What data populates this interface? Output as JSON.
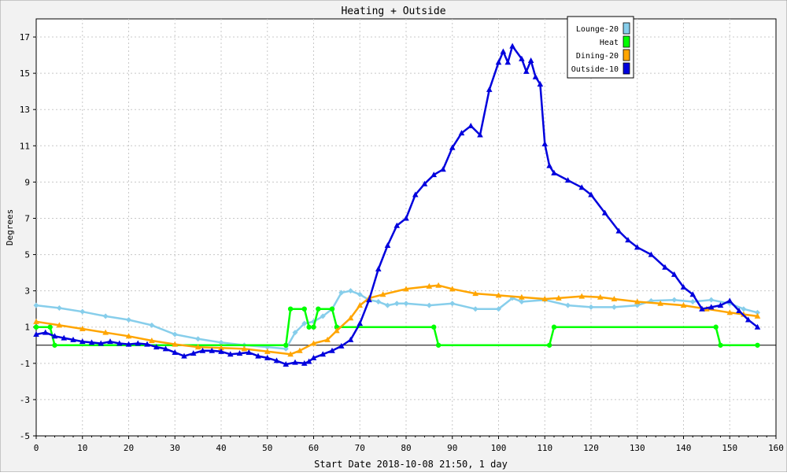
{
  "chart_data": {
    "type": "line",
    "title": "Heating + Outside",
    "xlabel": "Start Date 2018-10-08 21:50, 1 day",
    "ylabel": "Degrees",
    "xlim": [
      0,
      160
    ],
    "ylim": [
      -5,
      18
    ],
    "x_ticks": [
      0,
      10,
      20,
      30,
      40,
      50,
      60,
      70,
      80,
      90,
      100,
      110,
      120,
      130,
      140,
      150,
      160
    ],
    "y_ticks": [
      -5,
      -3,
      -1,
      1,
      3,
      5,
      7,
      9,
      11,
      13,
      15,
      17
    ],
    "grid": true,
    "legend_position": "top-right",
    "series": [
      {
        "name": "Lounge-20",
        "color": "#87ceeb",
        "marker": "diamond",
        "points": [
          [
            0,
            2.2
          ],
          [
            5,
            2.05
          ],
          [
            10,
            1.85
          ],
          [
            15,
            1.6
          ],
          [
            20,
            1.4
          ],
          [
            25,
            1.1
          ],
          [
            30,
            0.6
          ],
          [
            35,
            0.35
          ],
          [
            40,
            0.15
          ],
          [
            45,
            0.0
          ],
          [
            50,
            -0.1
          ],
          [
            54,
            -0.2
          ],
          [
            56,
            0.7
          ],
          [
            58,
            1.2
          ],
          [
            60,
            1.3
          ],
          [
            62,
            1.6
          ],
          [
            64,
            2.0
          ],
          [
            66,
            2.9
          ],
          [
            68,
            3.0
          ],
          [
            70,
            2.8
          ],
          [
            72,
            2.5
          ],
          [
            74,
            2.4
          ],
          [
            76,
            2.2
          ],
          [
            78,
            2.3
          ],
          [
            80,
            2.3
          ],
          [
            85,
            2.2
          ],
          [
            90,
            2.3
          ],
          [
            95,
            2.0
          ],
          [
            100,
            2.0
          ],
          [
            103,
            2.6
          ],
          [
            105,
            2.4
          ],
          [
            110,
            2.5
          ],
          [
            115,
            2.2
          ],
          [
            120,
            2.1
          ],
          [
            125,
            2.1
          ],
          [
            130,
            2.2
          ],
          [
            133,
            2.45
          ],
          [
            138,
            2.5
          ],
          [
            142,
            2.4
          ],
          [
            146,
            2.5
          ],
          [
            150,
            2.3
          ],
          [
            153,
            2.0
          ],
          [
            156,
            1.8
          ]
        ]
      },
      {
        "name": "Heat",
        "color": "#00ff00",
        "marker": "circle",
        "points": [
          [
            0,
            1
          ],
          [
            3,
            1
          ],
          [
            4,
            0
          ],
          [
            54,
            0
          ],
          [
            55,
            2
          ],
          [
            58,
            2
          ],
          [
            59,
            1
          ],
          [
            60,
            1
          ],
          [
            61,
            2
          ],
          [
            64,
            2
          ],
          [
            65,
            1
          ],
          [
            86,
            1
          ],
          [
            87,
            0
          ],
          [
            111,
            0
          ],
          [
            112,
            1
          ],
          [
            147,
            1
          ],
          [
            148,
            0
          ],
          [
            156,
            0
          ]
        ]
      },
      {
        "name": "Dining-20",
        "color": "#ffa500",
        "marker": "triangle",
        "points": [
          [
            0,
            1.3
          ],
          [
            5,
            1.1
          ],
          [
            10,
            0.9
          ],
          [
            15,
            0.7
          ],
          [
            20,
            0.5
          ],
          [
            25,
            0.25
          ],
          [
            30,
            0.05
          ],
          [
            35,
            -0.1
          ],
          [
            40,
            -0.15
          ],
          [
            45,
            -0.2
          ],
          [
            50,
            -0.35
          ],
          [
            55,
            -0.5
          ],
          [
            57,
            -0.3
          ],
          [
            60,
            0.1
          ],
          [
            63,
            0.3
          ],
          [
            65,
            0.8
          ],
          [
            68,
            1.5
          ],
          [
            70,
            2.2
          ],
          [
            72,
            2.6
          ],
          [
            75,
            2.8
          ],
          [
            80,
            3.1
          ],
          [
            85,
            3.25
          ],
          [
            87,
            3.3
          ],
          [
            90,
            3.1
          ],
          [
            95,
            2.85
          ],
          [
            100,
            2.75
          ],
          [
            105,
            2.65
          ],
          [
            110,
            2.55
          ],
          [
            113,
            2.6
          ],
          [
            118,
            2.7
          ],
          [
            122,
            2.65
          ],
          [
            125,
            2.55
          ],
          [
            130,
            2.4
          ],
          [
            135,
            2.3
          ],
          [
            140,
            2.2
          ],
          [
            145,
            2.0
          ],
          [
            150,
            1.8
          ],
          [
            153,
            1.7
          ],
          [
            156,
            1.6
          ]
        ]
      },
      {
        "name": "Outside-10",
        "color": "#0000dd",
        "marker": "triangle",
        "points": [
          [
            0,
            0.6
          ],
          [
            2,
            0.7
          ],
          [
            4,
            0.5
          ],
          [
            6,
            0.4
          ],
          [
            8,
            0.3
          ],
          [
            10,
            0.2
          ],
          [
            12,
            0.15
          ],
          [
            14,
            0.1
          ],
          [
            16,
            0.2
          ],
          [
            18,
            0.1
          ],
          [
            20,
            0.05
          ],
          [
            22,
            0.1
          ],
          [
            24,
            0.05
          ],
          [
            26,
            -0.1
          ],
          [
            28,
            -0.2
          ],
          [
            30,
            -0.4
          ],
          [
            32,
            -0.6
          ],
          [
            34,
            -0.45
          ],
          [
            36,
            -0.3
          ],
          [
            38,
            -0.3
          ],
          [
            40,
            -0.35
          ],
          [
            42,
            -0.5
          ],
          [
            44,
            -0.45
          ],
          [
            46,
            -0.4
          ],
          [
            48,
            -0.6
          ],
          [
            50,
            -0.7
          ],
          [
            52,
            -0.85
          ],
          [
            54,
            -1.05
          ],
          [
            56,
            -0.95
          ],
          [
            58,
            -1.0
          ],
          [
            59,
            -0.9
          ],
          [
            60,
            -0.7
          ],
          [
            62,
            -0.5
          ],
          [
            64,
            -0.3
          ],
          [
            66,
            -0.05
          ],
          [
            68,
            0.3
          ],
          [
            70,
            1.2
          ],
          [
            72,
            2.5
          ],
          [
            74,
            4.2
          ],
          [
            76,
            5.5
          ],
          [
            78,
            6.6
          ],
          [
            80,
            7.0
          ],
          [
            82,
            8.3
          ],
          [
            84,
            8.9
          ],
          [
            86,
            9.4
          ],
          [
            88,
            9.7
          ],
          [
            90,
            10.9
          ],
          [
            92,
            11.7
          ],
          [
            94,
            12.1
          ],
          [
            96,
            11.6
          ],
          [
            98,
            14.1
          ],
          [
            100,
            15.6
          ],
          [
            101,
            16.2
          ],
          [
            102,
            15.6
          ],
          [
            103,
            16.5
          ],
          [
            105,
            15.8
          ],
          [
            106,
            15.1
          ],
          [
            107,
            15.7
          ],
          [
            108,
            14.8
          ],
          [
            109,
            14.4
          ],
          [
            110,
            11.1
          ],
          [
            111,
            9.9
          ],
          [
            112,
            9.5
          ],
          [
            115,
            9.1
          ],
          [
            118,
            8.7
          ],
          [
            120,
            8.3
          ],
          [
            123,
            7.3
          ],
          [
            126,
            6.3
          ],
          [
            128,
            5.8
          ],
          [
            130,
            5.4
          ],
          [
            133,
            5.0
          ],
          [
            136,
            4.3
          ],
          [
            138,
            3.9
          ],
          [
            140,
            3.2
          ],
          [
            142,
            2.8
          ],
          [
            144,
            2.0
          ],
          [
            146,
            2.1
          ],
          [
            148,
            2.2
          ],
          [
            150,
            2.45
          ],
          [
            152,
            1.9
          ],
          [
            154,
            1.4
          ],
          [
            156,
            1.0
          ]
        ]
      }
    ]
  }
}
